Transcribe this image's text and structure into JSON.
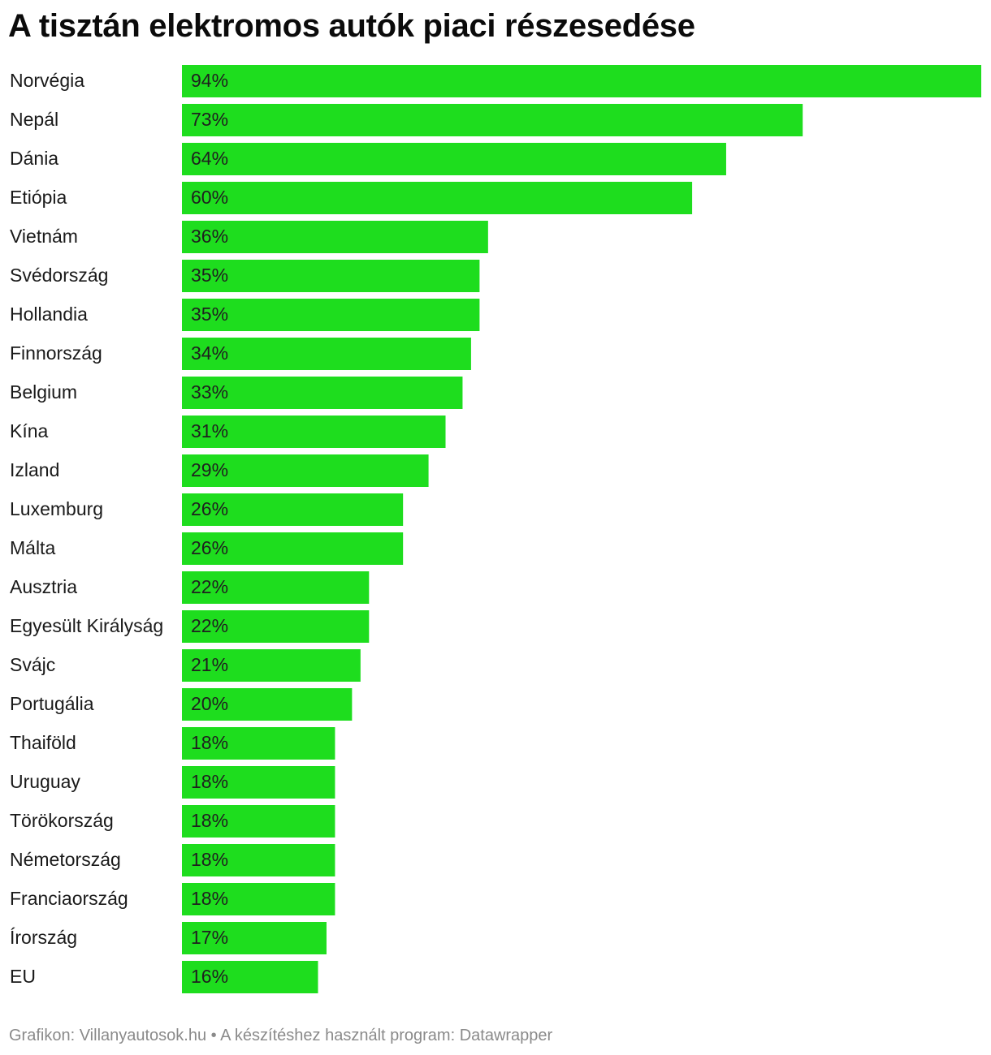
{
  "chart_data": {
    "type": "bar",
    "orientation": "horizontal",
    "title": "A tisztán elektromos autók piaci részesedése",
    "categories": [
      "Norvégia",
      "Nepál",
      "Dánia",
      "Etiópia",
      "Vietnám",
      "Svédország",
      "Hollandia",
      "Finnország",
      "Belgium",
      "Kína",
      "Izland",
      "Luxemburg",
      "Málta",
      "Ausztria",
      "Egyesült Királyság",
      "Svájc",
      "Portugália",
      "Thaiföld",
      "Uruguay",
      "Törökország",
      "Németország",
      "Franciaország",
      "Írország",
      "EU"
    ],
    "values": [
      94,
      73,
      64,
      60,
      36,
      35,
      35,
      34,
      33,
      31,
      29,
      26,
      26,
      22,
      22,
      21,
      20,
      18,
      18,
      18,
      18,
      18,
      17,
      16
    ],
    "value_suffix": "%",
    "xlim": [
      0,
      94
    ],
    "grid": false,
    "legend": "none",
    "bar_color": "#1edd1e"
  },
  "footer": {
    "text": "Grafikon: Villanyautosok.hu • A készítéshez használt program: Datawrapper"
  }
}
